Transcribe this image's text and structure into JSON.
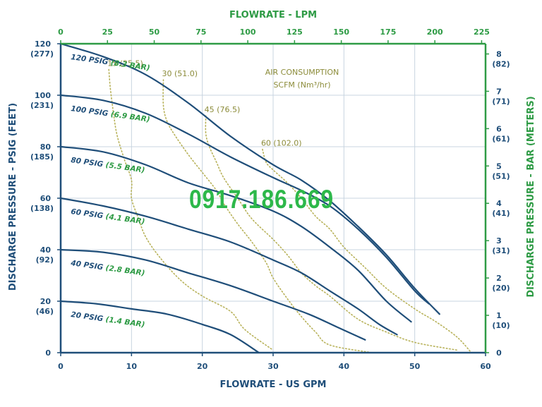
{
  "colors": {
    "blue": "#1f4e79",
    "green": "#2e9b45",
    "olive": "#8c8c3a",
    "grid": "#c8d4e0",
    "dotted": "#b8b25a"
  },
  "watermark": "0917.186.669",
  "chart_data": {
    "type": "line",
    "title": "",
    "xlabel": "FLOWRATE - US GPM",
    "x2label": "FLOWRATE - LPM",
    "ylabel": "DISCHARGE PRESSURE - PSIG (FEET)",
    "y2label": "DISCHARGE PRESSURE - BAR (METERS)",
    "xlim": [
      0,
      60
    ],
    "ylim": [
      0,
      120
    ],
    "grid": true,
    "x_ticks": [
      "0",
      "10",
      "20",
      "30",
      "40",
      "50",
      "60"
    ],
    "x2_ticks": [
      "0",
      "25",
      "50",
      "75",
      "100",
      "125",
      "150",
      "175",
      "200",
      "225"
    ],
    "y_ticks": [
      {
        "v": "0",
        "sub": ""
      },
      {
        "v": "20",
        "sub": "(46)"
      },
      {
        "v": "40",
        "sub": "(92)"
      },
      {
        "v": "60",
        "sub": "(138)"
      },
      {
        "v": "80",
        "sub": "(185)"
      },
      {
        "v": "100",
        "sub": "(231)"
      },
      {
        "v": "120",
        "sub": "(277)"
      }
    ],
    "y2_ticks": [
      {
        "v": "0",
        "sub": ""
      },
      {
        "v": "1",
        "sub": "(10)"
      },
      {
        "v": "2",
        "sub": "(20)"
      },
      {
        "v": "3",
        "sub": "(31)"
      },
      {
        "v": "4",
        "sub": "(41)"
      },
      {
        "v": "5",
        "sub": "(51)"
      },
      {
        "v": "6",
        "sub": "(61)"
      },
      {
        "v": "7",
        "sub": "(71)"
      },
      {
        "v": "8",
        "sub": "(82)"
      }
    ],
    "series": [
      {
        "name": "120 PSIG",
        "name_bar": "(8.3 BAR)",
        "points": [
          [
            0,
            120
          ],
          [
            6,
            115
          ],
          [
            12,
            108
          ],
          [
            18,
            97
          ],
          [
            24,
            84
          ],
          [
            30,
            73
          ],
          [
            34,
            67
          ],
          [
            38,
            59
          ],
          [
            42,
            49
          ],
          [
            46,
            38
          ],
          [
            50,
            25
          ],
          [
            53.5,
            15
          ]
        ]
      },
      {
        "name": "100 PSIG",
        "name_bar": "(6.9 BAR)",
        "points": [
          [
            0,
            100
          ],
          [
            6,
            98
          ],
          [
            12,
            93
          ],
          [
            18,
            85
          ],
          [
            24,
            76
          ],
          [
            30,
            68
          ],
          [
            34,
            63
          ],
          [
            38,
            57
          ],
          [
            42,
            48
          ],
          [
            46,
            37
          ],
          [
            50,
            24
          ],
          [
            52,
            19
          ]
        ]
      },
      {
        "name": "80 PSIG",
        "name_bar": "(5.5 BAR)",
        "points": [
          [
            0,
            80
          ],
          [
            6,
            78
          ],
          [
            12,
            73
          ],
          [
            18,
            66
          ],
          [
            24,
            61
          ],
          [
            30,
            55
          ],
          [
            34,
            49
          ],
          [
            38,
            41
          ],
          [
            42,
            32
          ],
          [
            46,
            20
          ],
          [
            49.5,
            12
          ]
        ]
      },
      {
        "name": "60 PSIG",
        "name_bar": "(4.1 BAR)",
        "points": [
          [
            0,
            60
          ],
          [
            6,
            57
          ],
          [
            12,
            53
          ],
          [
            18,
            48
          ],
          [
            24,
            43
          ],
          [
            30,
            36
          ],
          [
            34,
            31
          ],
          [
            38,
            24
          ],
          [
            42,
            17
          ],
          [
            45,
            11
          ],
          [
            47.5,
            7
          ]
        ]
      },
      {
        "name": "40 PSIG",
        "name_bar": "(2.8 BAR)",
        "points": [
          [
            0,
            40
          ],
          [
            6,
            39
          ],
          [
            12,
            36
          ],
          [
            18,
            31
          ],
          [
            24,
            26
          ],
          [
            30,
            20
          ],
          [
            35,
            15
          ],
          [
            39,
            10
          ],
          [
            43,
            5
          ]
        ]
      },
      {
        "name": "20 PSIG",
        "name_bar": "(1.4 BAR)",
        "points": [
          [
            0,
            20
          ],
          [
            5,
            19
          ],
          [
            10,
            17
          ],
          [
            15,
            15
          ],
          [
            20,
            11
          ],
          [
            24,
            7
          ],
          [
            28,
            0
          ]
        ]
      }
    ],
    "air_title": "AIR CONSUMPTION",
    "air_units": "SCFM (Nm³/hr)",
    "air_lines": [
      {
        "label": "15 (25.5)",
        "points": [
          [
            6.8,
            110
          ],
          [
            7.0,
            103
          ],
          [
            7.5,
            92
          ],
          [
            8,
            84
          ],
          [
            9,
            75
          ],
          [
            10,
            67
          ],
          [
            10,
            60
          ],
          [
            11,
            52
          ],
          [
            12,
            45
          ],
          [
            14,
            37
          ],
          [
            17,
            28
          ],
          [
            20,
            22
          ],
          [
            24,
            16
          ],
          [
            26,
            9
          ],
          [
            30,
            1
          ]
        ]
      },
      {
        "label": "30 (51.0)",
        "points": [
          [
            14.5,
            106
          ],
          [
            14.5,
            96
          ],
          [
            15,
            90
          ],
          [
            16,
            85
          ],
          [
            18,
            77
          ],
          [
            20,
            70
          ],
          [
            22,
            63
          ],
          [
            23,
            58
          ],
          [
            25,
            50
          ],
          [
            27,
            43
          ],
          [
            29,
            35
          ],
          [
            30,
            29
          ],
          [
            32,
            21
          ],
          [
            34,
            14
          ],
          [
            36,
            8
          ],
          [
            38,
            3
          ],
          [
            44,
            0
          ]
        ]
      },
      {
        "label": "45 (76.5)",
        "points": [
          [
            20.5,
            92
          ],
          [
            20.5,
            85
          ],
          [
            21,
            80
          ],
          [
            22,
            74
          ],
          [
            23,
            68
          ],
          [
            25,
            60
          ],
          [
            27,
            52
          ],
          [
            30,
            44
          ],
          [
            32,
            38
          ],
          [
            34,
            31
          ],
          [
            36,
            26
          ],
          [
            38,
            22
          ],
          [
            42,
            13
          ],
          [
            46,
            8
          ],
          [
            50,
            4
          ],
          [
            56,
            1
          ]
        ]
      },
      {
        "label": "60 (102.0)",
        "points": [
          [
            28.5,
            79
          ],
          [
            29,
            74
          ],
          [
            30,
            71
          ],
          [
            32,
            66
          ],
          [
            34,
            60
          ],
          [
            36,
            53
          ],
          [
            38,
            48
          ],
          [
            40,
            41
          ],
          [
            43,
            33
          ],
          [
            46,
            25
          ],
          [
            50,
            17
          ],
          [
            53,
            12
          ],
          [
            56,
            6
          ],
          [
            58,
            0
          ]
        ]
      }
    ]
  }
}
